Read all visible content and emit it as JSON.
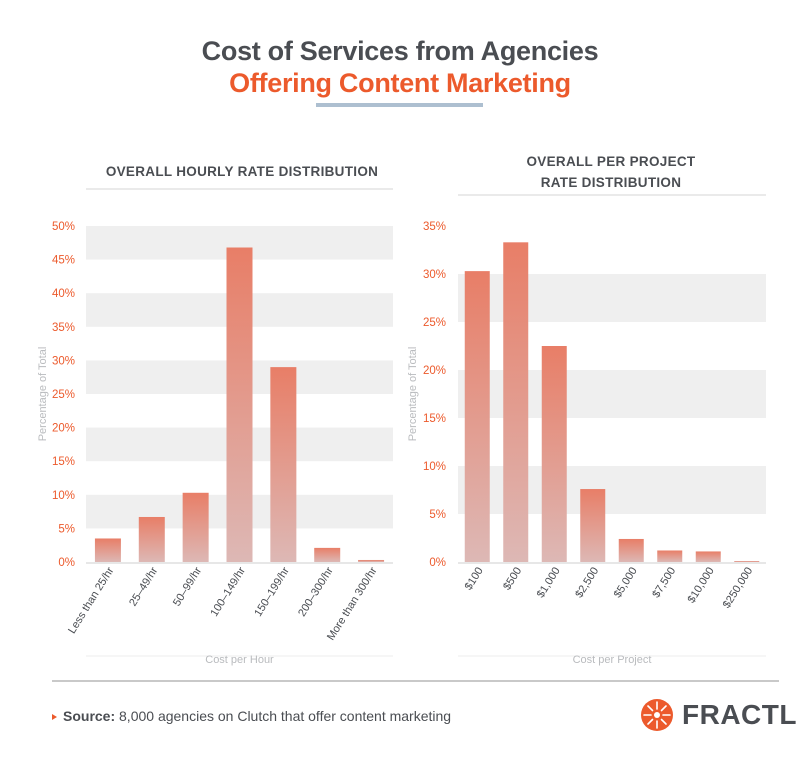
{
  "header": {
    "title_line1": "Cost of Services from Agencies",
    "title_line2": "Offering Content Marketing"
  },
  "footer": {
    "source_label": "Source:",
    "source_text": "8,000 agencies on Clutch that offer content marketing",
    "brand": "FRACTL"
  },
  "colors": {
    "accent": "#ec5a2c",
    "title_dark": "#4a4d52",
    "bar_top": "#e87e67",
    "bar_bottom": "#ddb8b5",
    "band": "#efefef"
  },
  "chart_data": [
    {
      "type": "bar",
      "title": "OVERALL HOURLY RATE DISTRIBUTION",
      "categories": [
        "Less than 25/hr",
        "25–49/hr",
        "50–99/hr",
        "100–149/hr",
        "150–199/hr",
        "200–300/hr",
        "More than 300/hr"
      ],
      "values": [
        3.5,
        6.7,
        10.3,
        46.8,
        29.0,
        2.1,
        0.3
      ],
      "yticks": [
        "0%",
        "5%",
        "10%",
        "15%",
        "20%",
        "25%",
        "30%",
        "35%",
        "40%",
        "45%",
        "50%"
      ],
      "ylim": [
        0,
        50
      ],
      "ytick_step": 5,
      "ylabel": "Percentage of Total",
      "xlabel": "Cost per Hour"
    },
    {
      "type": "bar",
      "title": "OVERALL PER PROJECT RATE DISTRIBUTION",
      "title_lines": [
        "OVERALL PER PROJECT",
        "RATE DISTRIBUTION"
      ],
      "categories": [
        "$100",
        "$500",
        "$1,000",
        "$2,500",
        "$5,000",
        "$7,500",
        "$10,000",
        "$250,000"
      ],
      "values": [
        30.3,
        33.3,
        22.5,
        7.6,
        2.4,
        1.2,
        1.1,
        0.1
      ],
      "yticks": [
        "0%",
        "5%",
        "10%",
        "15%",
        "20%",
        "25%",
        "30%",
        "35%"
      ],
      "ylim": [
        0,
        35
      ],
      "ytick_step": 5,
      "ylabel": "Percentage of Total",
      "xlabel": "Cost per Project"
    }
  ]
}
